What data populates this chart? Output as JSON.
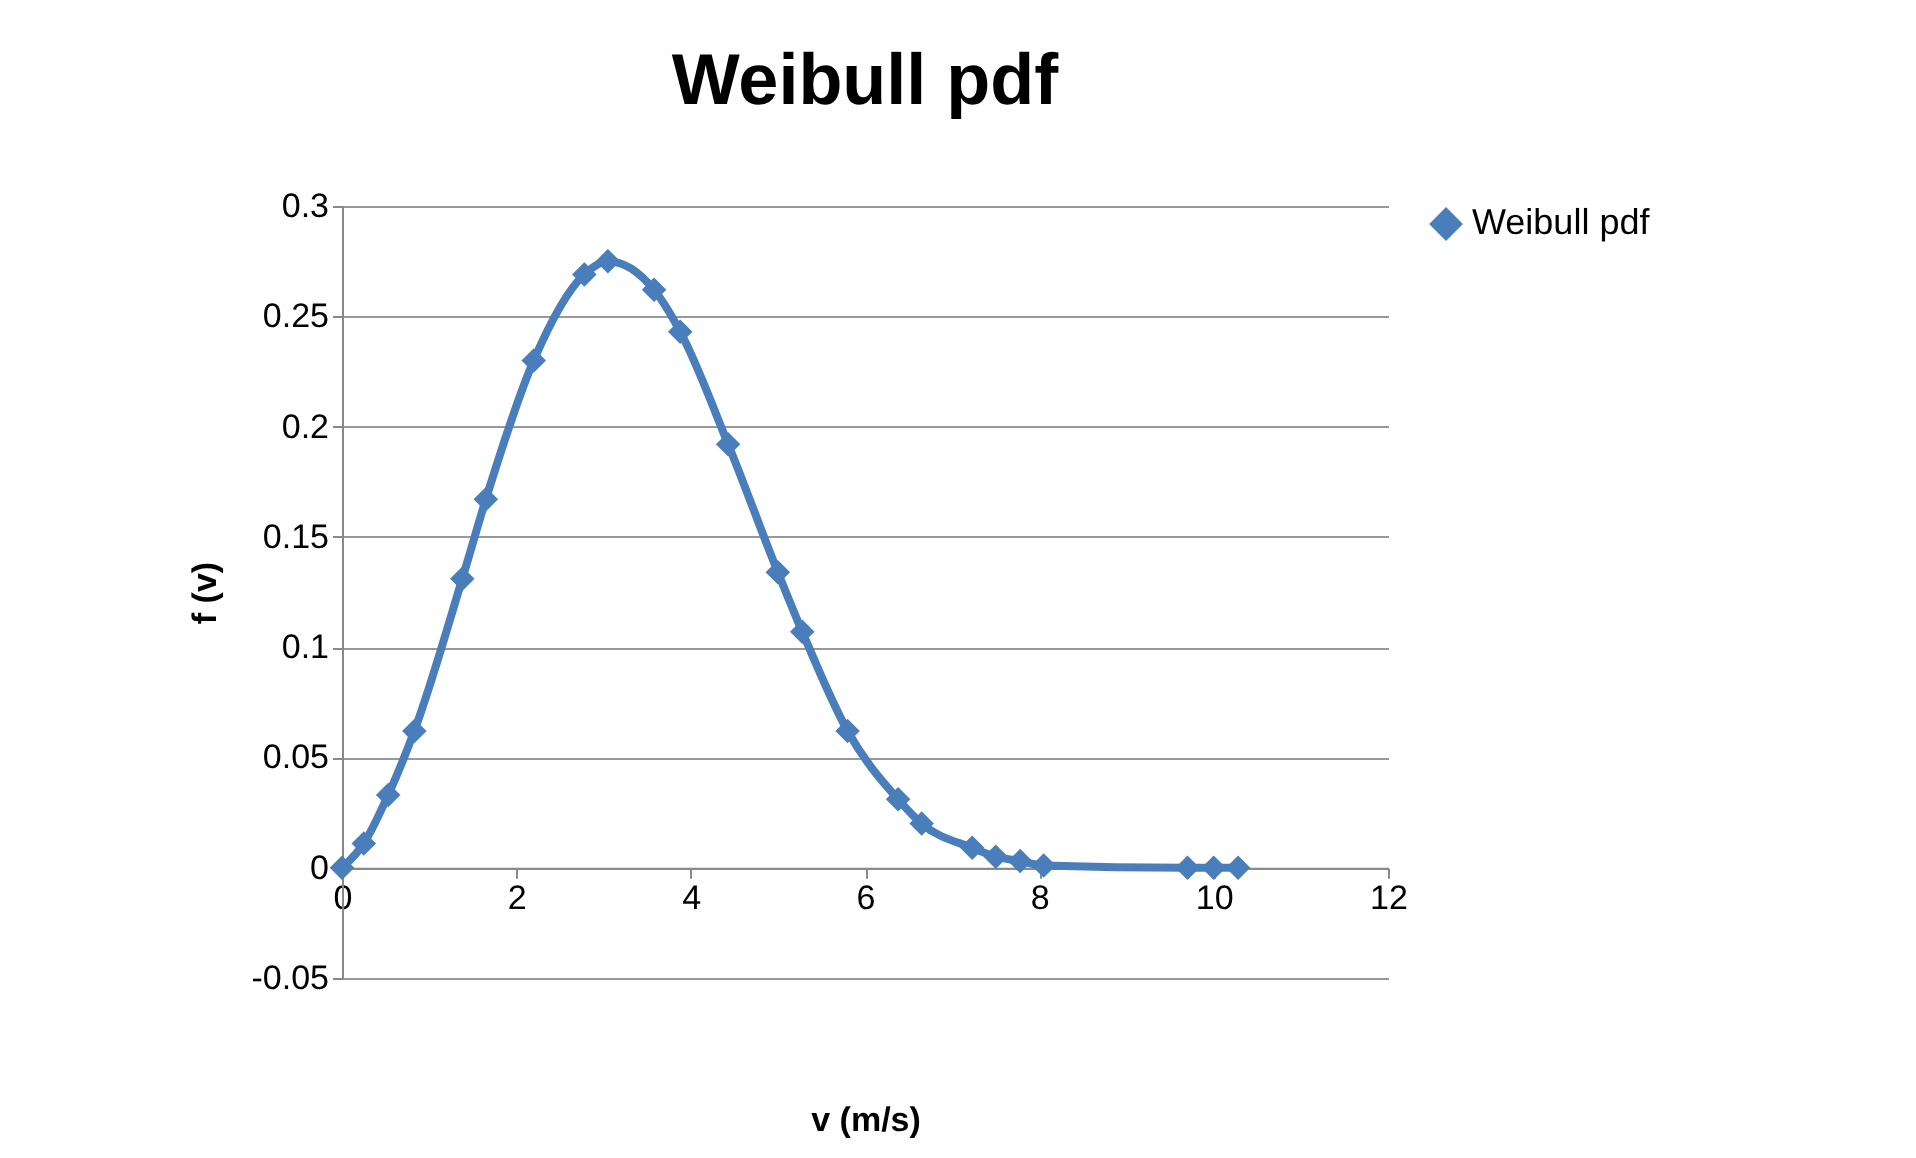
{
  "chart_data": {
    "type": "line",
    "title": "Weibull pdf",
    "xlabel": "v (m/s)",
    "ylabel": "f (v)",
    "xlim": [
      0,
      12
    ],
    "xticks": [
      0,
      2,
      4,
      6,
      8,
      10,
      12
    ],
    "ylim": [
      -0.05,
      0.3
    ],
    "yticks": [
      -0.05,
      0,
      0.05,
      0.1,
      0.15,
      0.2,
      0.25,
      0.3
    ],
    "grid": "y",
    "legend": "right",
    "marker": "diamond",
    "line_style": "solid",
    "series": [
      {
        "name": "Weibull pdf",
        "color": "#4a7ebb",
        "x": [
          0,
          0.25,
          0.53,
          0.83,
          1.38,
          1.65,
          2.2,
          2.78,
          3.05,
          3.58,
          3.88,
          4.43,
          5.0,
          5.28,
          5.8,
          6.38,
          6.65,
          7.23,
          7.5,
          7.78,
          8.05,
          9.7,
          10.0,
          10.28
        ],
        "values": [
          0,
          0.011,
          0.033,
          0.062,
          0.131,
          0.167,
          0.23,
          0.269,
          0.275,
          0.262,
          0.243,
          0.192,
          0.134,
          0.107,
          0.062,
          0.031,
          0.02,
          0.009,
          0.005,
          0.003,
          0.001,
          0,
          0,
          0
        ]
      }
    ]
  }
}
